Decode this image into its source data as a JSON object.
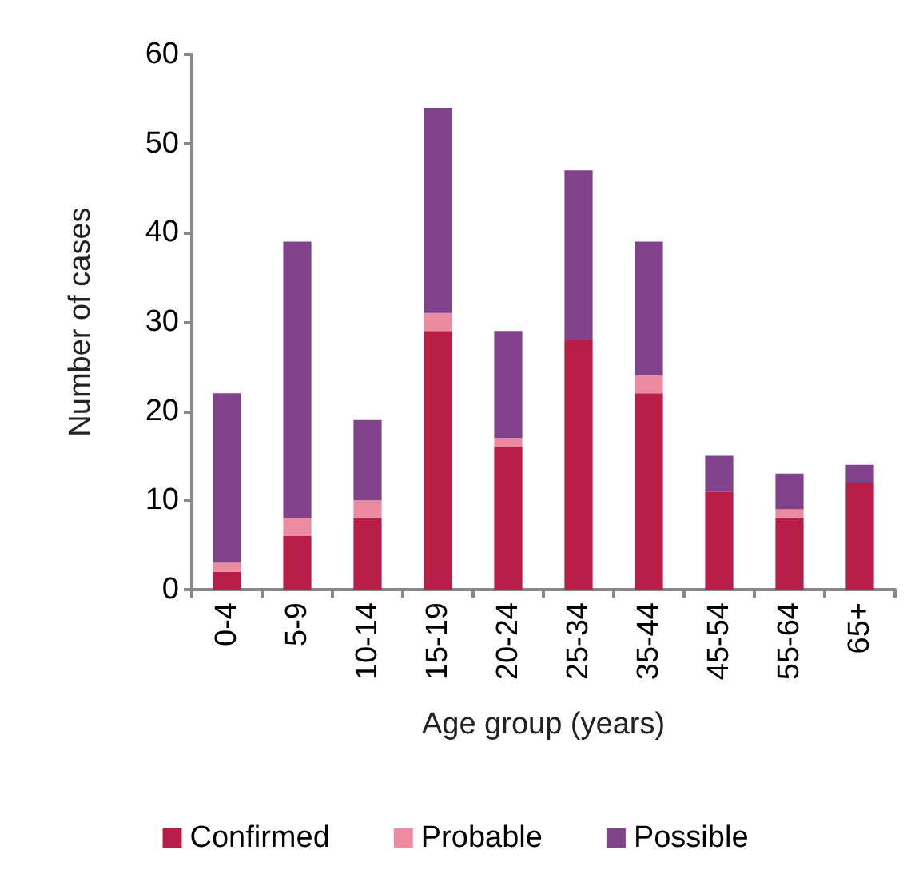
{
  "chart_data": {
    "type": "bar",
    "stacked": true,
    "xlabel": "Age group (years)",
    "ylabel": "Number of cases",
    "categories": [
      "0-4",
      "5-9",
      "10-14",
      "15-19",
      "20-24",
      "25-34",
      "35-44",
      "45-54",
      "55-64",
      "65+"
    ],
    "series": [
      {
        "name": "Confirmed",
        "color": "#b81e48",
        "values": [
          2,
          6,
          8,
          29,
          16,
          28,
          22,
          11,
          8,
          12
        ]
      },
      {
        "name": "Probable",
        "color": "#ec8aa0",
        "values": [
          1,
          2,
          2,
          2,
          1,
          0,
          2,
          0,
          1,
          0
        ]
      },
      {
        "name": "Possible",
        "color": "#81428c",
        "values": [
          19,
          31,
          9,
          23,
          12,
          19,
          15,
          4,
          4,
          2
        ]
      }
    ],
    "ylim": [
      0,
      60
    ],
    "yticks": [
      0,
      10,
      20,
      30,
      40,
      50,
      60
    ],
    "grid": false,
    "legend": "bottom"
  }
}
